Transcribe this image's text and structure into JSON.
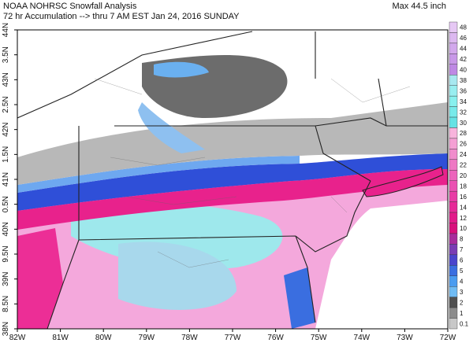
{
  "header": {
    "title": "NOAA NOHRSC Snowfall Analysis",
    "subtitle": "72 hr Accumulation --> thru 7 AM EST Jan 24, 2016 SUNDAY",
    "max": "Max 44.5 inch"
  },
  "axes": {
    "x_labels": [
      "82W",
      "81W",
      "80W",
      "79W",
      "78W",
      "77W",
      "76W",
      "75W",
      "74W",
      "73W",
      "72W"
    ],
    "y_labels": [
      "44N",
      "3.5N",
      "43N",
      "2.5N",
      "42N",
      "1.5N",
      "41N",
      "0.5N",
      "40N",
      "9.5N",
      "39N",
      "8.5N",
      "38N"
    ]
  },
  "colorbar": {
    "labels": [
      "48",
      "46",
      "44",
      "42",
      "40",
      "38",
      "36",
      "34",
      "32",
      "30",
      "28",
      "26",
      "24",
      "22",
      "20",
      "18",
      "16",
      "14",
      "12",
      "10",
      "8",
      "7",
      "6",
      "5",
      "4",
      "3",
      "2",
      "1",
      "0.1"
    ],
    "colors": [
      "#e6c8f4",
      "#dcb8f0",
      "#d2a8ec",
      "#c898e8",
      "#be88e4",
      "#a8e8f0",
      "#98eef0",
      "#88f0ee",
      "#78eaea",
      "#66e2e4",
      "#f8b4dc",
      "#f4a0d4",
      "#f08ccc",
      "#ee78c4",
      "#ec64bc",
      "#ea50b2",
      "#e83ca6",
      "#e62a98",
      "#e21a8a",
      "#d8107c",
      "#a82c9c",
      "#7a3cb4",
      "#4a44cc",
      "#3a6ee0",
      "#4a9cf0",
      "#70bcf4",
      "#505050",
      "#8c8c8c",
      "#c8c8c8"
    ]
  }
}
